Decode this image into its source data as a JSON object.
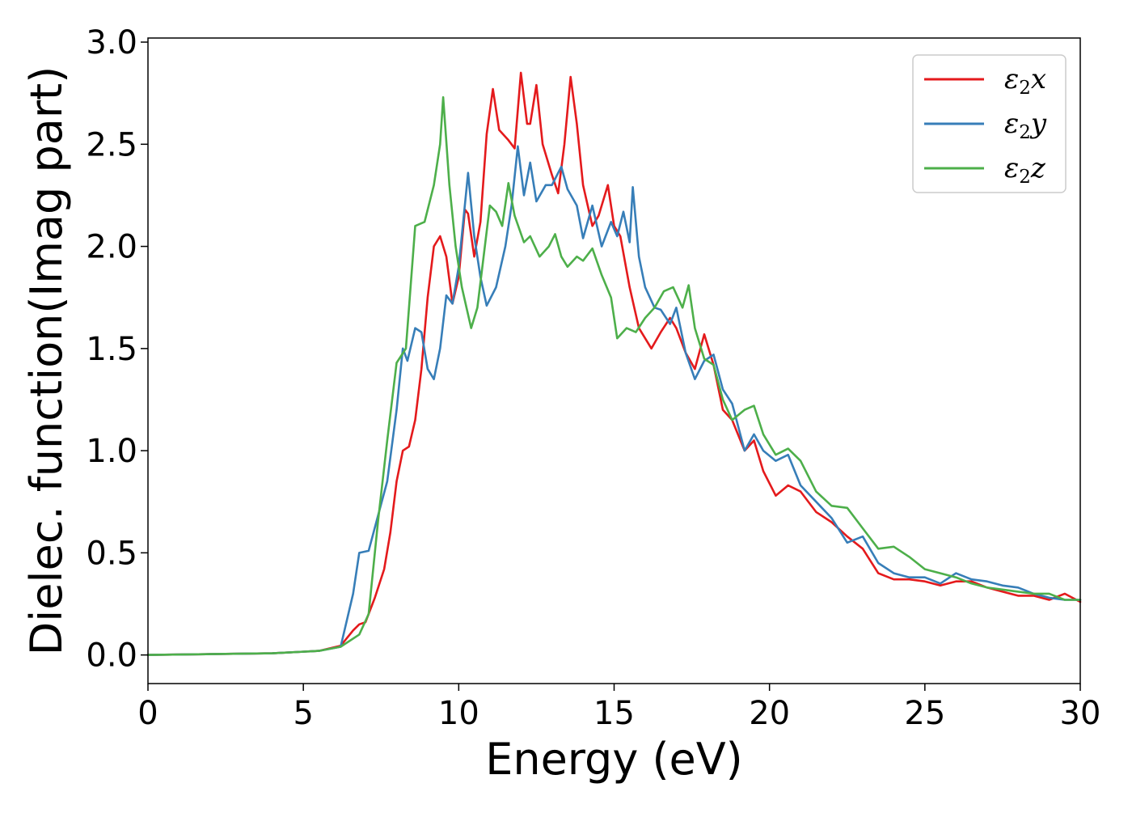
{
  "chart_data": {
    "type": "line",
    "title": "",
    "xlabel": "Energy (eV)",
    "ylabel": "Dielec. function(Imag part)",
    "xlim": [
      0,
      30
    ],
    "ylim": [
      -0.14,
      3.02
    ],
    "xticks": [
      0,
      5,
      10,
      15,
      20,
      25,
      30
    ],
    "xtick_labels": [
      "0",
      "5",
      "10",
      "15",
      "20",
      "25",
      "30"
    ],
    "yticks": [
      0.0,
      0.5,
      1.0,
      1.5,
      2.0,
      2.5,
      3.0
    ],
    "ytick_labels": [
      "0.0",
      "0.5",
      "1.0",
      "1.5",
      "2.0",
      "2.5",
      "3.0"
    ],
    "grid": false,
    "legend": {
      "position": "top-right",
      "entries": [
        {
          "symbol": "ε",
          "sub": "2",
          "suffix": "x",
          "color": "#e41a1c"
        },
        {
          "symbol": "ε",
          "sub": "2",
          "suffix": "y",
          "color": "#377eb8"
        },
        {
          "symbol": "ε",
          "sub": "2",
          "suffix": "z",
          "color": "#4daf4a"
        }
      ]
    },
    "series": [
      {
        "color": "#e41a1c",
        "points": [
          [
            0,
            0
          ],
          [
            2,
            0.004
          ],
          [
            4,
            0.008
          ],
          [
            5.5,
            0.02
          ],
          [
            6.2,
            0.045
          ],
          [
            6.6,
            0.12
          ],
          [
            6.8,
            0.15
          ],
          [
            7.0,
            0.16
          ],
          [
            7.3,
            0.28
          ],
          [
            7.6,
            0.42
          ],
          [
            7.8,
            0.6
          ],
          [
            8.0,
            0.85
          ],
          [
            8.2,
            1.0
          ],
          [
            8.4,
            1.02
          ],
          [
            8.6,
            1.15
          ],
          [
            8.8,
            1.4
          ],
          [
            9.0,
            1.75
          ],
          [
            9.2,
            2.0
          ],
          [
            9.4,
            2.05
          ],
          [
            9.6,
            1.95
          ],
          [
            9.8,
            1.72
          ],
          [
            10.0,
            1.85
          ],
          [
            10.2,
            2.18
          ],
          [
            10.3,
            2.16
          ],
          [
            10.5,
            1.95
          ],
          [
            10.7,
            2.12
          ],
          [
            10.9,
            2.55
          ],
          [
            11.1,
            2.77
          ],
          [
            11.3,
            2.57
          ],
          [
            11.6,
            2.52
          ],
          [
            11.8,
            2.48
          ],
          [
            12.0,
            2.85
          ],
          [
            12.2,
            2.6
          ],
          [
            12.3,
            2.6
          ],
          [
            12.5,
            2.79
          ],
          [
            12.7,
            2.5
          ],
          [
            13.0,
            2.35
          ],
          [
            13.2,
            2.26
          ],
          [
            13.4,
            2.5
          ],
          [
            13.6,
            2.83
          ],
          [
            13.8,
            2.6
          ],
          [
            14.0,
            2.3
          ],
          [
            14.3,
            2.1
          ],
          [
            14.5,
            2.15
          ],
          [
            14.8,
            2.3
          ],
          [
            15.0,
            2.1
          ],
          [
            15.2,
            2.05
          ],
          [
            15.5,
            1.8
          ],
          [
            15.8,
            1.6
          ],
          [
            16.2,
            1.5
          ],
          [
            16.5,
            1.58
          ],
          [
            16.8,
            1.65
          ],
          [
            17.0,
            1.6
          ],
          [
            17.3,
            1.48
          ],
          [
            17.6,
            1.4
          ],
          [
            17.9,
            1.57
          ],
          [
            18.2,
            1.42
          ],
          [
            18.5,
            1.2
          ],
          [
            18.8,
            1.15
          ],
          [
            19.2,
            1.0
          ],
          [
            19.5,
            1.05
          ],
          [
            19.8,
            0.9
          ],
          [
            20.2,
            0.78
          ],
          [
            20.6,
            0.83
          ],
          [
            21.0,
            0.8
          ],
          [
            21.5,
            0.7
          ],
          [
            22.0,
            0.65
          ],
          [
            22.5,
            0.58
          ],
          [
            23.0,
            0.52
          ],
          [
            23.5,
            0.4
          ],
          [
            24.0,
            0.37
          ],
          [
            24.5,
            0.37
          ],
          [
            25.0,
            0.36
          ],
          [
            25.5,
            0.34
          ],
          [
            26.0,
            0.36
          ],
          [
            26.5,
            0.36
          ],
          [
            27.0,
            0.33
          ],
          [
            27.5,
            0.31
          ],
          [
            28.0,
            0.29
          ],
          [
            28.5,
            0.29
          ],
          [
            29.0,
            0.27
          ],
          [
            29.5,
            0.3
          ],
          [
            30.0,
            0.26
          ]
        ]
      },
      {
        "color": "#377eb8",
        "points": [
          [
            0,
            0
          ],
          [
            2,
            0.004
          ],
          [
            4,
            0.008
          ],
          [
            5.5,
            0.02
          ],
          [
            6.2,
            0.04
          ],
          [
            6.6,
            0.3
          ],
          [
            6.8,
            0.5
          ],
          [
            7.1,
            0.51
          ],
          [
            7.4,
            0.68
          ],
          [
            7.7,
            0.85
          ],
          [
            8.0,
            1.2
          ],
          [
            8.2,
            1.5
          ],
          [
            8.35,
            1.44
          ],
          [
            8.6,
            1.6
          ],
          [
            8.8,
            1.58
          ],
          [
            9.0,
            1.4
          ],
          [
            9.2,
            1.35
          ],
          [
            9.4,
            1.5
          ],
          [
            9.6,
            1.76
          ],
          [
            9.8,
            1.72
          ],
          [
            10.0,
            1.9
          ],
          [
            10.3,
            2.36
          ],
          [
            10.5,
            2.05
          ],
          [
            10.7,
            1.85
          ],
          [
            10.9,
            1.71
          ],
          [
            11.2,
            1.8
          ],
          [
            11.5,
            2.0
          ],
          [
            11.7,
            2.2
          ],
          [
            11.9,
            2.49
          ],
          [
            12.1,
            2.25
          ],
          [
            12.3,
            2.41
          ],
          [
            12.5,
            2.22
          ],
          [
            12.8,
            2.3
          ],
          [
            13.0,
            2.3
          ],
          [
            13.3,
            2.39
          ],
          [
            13.5,
            2.28
          ],
          [
            13.8,
            2.2
          ],
          [
            14.0,
            2.04
          ],
          [
            14.3,
            2.2
          ],
          [
            14.6,
            2.0
          ],
          [
            14.9,
            2.12
          ],
          [
            15.1,
            2.05
          ],
          [
            15.3,
            2.17
          ],
          [
            15.5,
            2.02
          ],
          [
            15.6,
            2.29
          ],
          [
            15.8,
            1.95
          ],
          [
            16.0,
            1.8
          ],
          [
            16.3,
            1.7
          ],
          [
            16.5,
            1.69
          ],
          [
            16.8,
            1.62
          ],
          [
            17.0,
            1.7
          ],
          [
            17.3,
            1.48
          ],
          [
            17.6,
            1.35
          ],
          [
            17.9,
            1.44
          ],
          [
            18.2,
            1.47
          ],
          [
            18.5,
            1.3
          ],
          [
            18.8,
            1.23
          ],
          [
            19.2,
            1.0
          ],
          [
            19.5,
            1.08
          ],
          [
            19.8,
            1.0
          ],
          [
            20.2,
            0.95
          ],
          [
            20.6,
            0.98
          ],
          [
            21.0,
            0.83
          ],
          [
            21.5,
            0.75
          ],
          [
            22.0,
            0.67
          ],
          [
            22.5,
            0.55
          ],
          [
            23.0,
            0.58
          ],
          [
            23.5,
            0.45
          ],
          [
            24.0,
            0.4
          ],
          [
            24.5,
            0.38
          ],
          [
            25.0,
            0.38
          ],
          [
            25.5,
            0.35
          ],
          [
            26.0,
            0.4
          ],
          [
            26.5,
            0.37
          ],
          [
            27.0,
            0.36
          ],
          [
            27.5,
            0.34
          ],
          [
            28.0,
            0.33
          ],
          [
            28.5,
            0.3
          ],
          [
            29.0,
            0.28
          ],
          [
            29.5,
            0.27
          ],
          [
            30.0,
            0.27
          ]
        ]
      },
      {
        "color": "#4daf4a",
        "points": [
          [
            0,
            0
          ],
          [
            2,
            0.004
          ],
          [
            4,
            0.008
          ],
          [
            5.5,
            0.02
          ],
          [
            6.2,
            0.04
          ],
          [
            6.8,
            0.1
          ],
          [
            7.1,
            0.2
          ],
          [
            7.4,
            0.65
          ],
          [
            7.7,
            1.05
          ],
          [
            8.0,
            1.43
          ],
          [
            8.3,
            1.5
          ],
          [
            8.6,
            2.1
          ],
          [
            8.9,
            2.12
          ],
          [
            9.2,
            2.3
          ],
          [
            9.4,
            2.5
          ],
          [
            9.5,
            2.73
          ],
          [
            9.7,
            2.3
          ],
          [
            9.9,
            2.0
          ],
          [
            10.1,
            1.8
          ],
          [
            10.4,
            1.6
          ],
          [
            10.6,
            1.7
          ],
          [
            10.8,
            1.95
          ],
          [
            11.0,
            2.2
          ],
          [
            11.2,
            2.17
          ],
          [
            11.4,
            2.1
          ],
          [
            11.6,
            2.31
          ],
          [
            11.8,
            2.15
          ],
          [
            12.1,
            2.02
          ],
          [
            12.3,
            2.05
          ],
          [
            12.6,
            1.95
          ],
          [
            12.9,
            2.0
          ],
          [
            13.1,
            2.06
          ],
          [
            13.3,
            1.95
          ],
          [
            13.5,
            1.9
          ],
          [
            13.8,
            1.95
          ],
          [
            14.0,
            1.93
          ],
          [
            14.3,
            1.99
          ],
          [
            14.6,
            1.86
          ],
          [
            14.9,
            1.75
          ],
          [
            15.1,
            1.55
          ],
          [
            15.4,
            1.6
          ],
          [
            15.7,
            1.58
          ],
          [
            16.0,
            1.65
          ],
          [
            16.3,
            1.7
          ],
          [
            16.6,
            1.78
          ],
          [
            16.9,
            1.8
          ],
          [
            17.2,
            1.7
          ],
          [
            17.4,
            1.81
          ],
          [
            17.6,
            1.6
          ],
          [
            17.9,
            1.45
          ],
          [
            18.2,
            1.42
          ],
          [
            18.5,
            1.25
          ],
          [
            18.8,
            1.15
          ],
          [
            19.2,
            1.2
          ],
          [
            19.5,
            1.22
          ],
          [
            19.8,
            1.08
          ],
          [
            20.2,
            0.98
          ],
          [
            20.6,
            1.01
          ],
          [
            21.0,
            0.95
          ],
          [
            21.5,
            0.8
          ],
          [
            22.0,
            0.73
          ],
          [
            22.5,
            0.72
          ],
          [
            23.0,
            0.62
          ],
          [
            23.5,
            0.52
          ],
          [
            24.0,
            0.53
          ],
          [
            24.5,
            0.48
          ],
          [
            25.0,
            0.42
          ],
          [
            25.5,
            0.4
          ],
          [
            26.0,
            0.38
          ],
          [
            26.5,
            0.35
          ],
          [
            27.0,
            0.33
          ],
          [
            27.5,
            0.32
          ],
          [
            28.0,
            0.31
          ],
          [
            28.5,
            0.3
          ],
          [
            29.0,
            0.3
          ],
          [
            29.5,
            0.27
          ],
          [
            30.0,
            0.27
          ]
        ]
      }
    ]
  }
}
